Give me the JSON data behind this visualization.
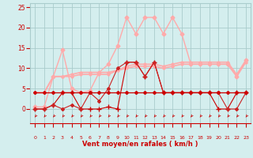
{
  "x": [
    0,
    1,
    2,
    3,
    4,
    5,
    6,
    7,
    8,
    9,
    10,
    11,
    12,
    13,
    14,
    15,
    16,
    17,
    18,
    19,
    20,
    21,
    22,
    23
  ],
  "series": [
    {
      "y": [
        4.0,
        4.0,
        4.0,
        4.0,
        4.0,
        4.0,
        4.0,
        4.0,
        4.0,
        4.0,
        4.0,
        4.0,
        4.0,
        4.0,
        4.0,
        4.0,
        4.0,
        4.0,
        4.0,
        4.0,
        4.0,
        4.0,
        4.0,
        4.0
      ],
      "color": "#cc0000",
      "marker": "D",
      "markersize": 2.0,
      "linewidth": 0.9,
      "zorder": 4,
      "linestyle": "-"
    },
    {
      "y": [
        0.0,
        0.0,
        1.0,
        4.0,
        4.0,
        0.0,
        0.0,
        0.0,
        0.5,
        0.0,
        11.5,
        11.5,
        8.0,
        11.5,
        4.0,
        4.0,
        4.0,
        4.0,
        4.0,
        4.0,
        0.0,
        0.0,
        4.0,
        4.0
      ],
      "color": "#cc0000",
      "marker": "+",
      "markersize": 4,
      "linewidth": 0.8,
      "zorder": 3,
      "linestyle": "-"
    },
    {
      "y": [
        0.0,
        0.0,
        1.0,
        0.0,
        1.0,
        0.0,
        4.0,
        2.0,
        5.0,
        10.0,
        11.5,
        11.5,
        8.0,
        11.5,
        4.0,
        4.0,
        4.0,
        4.0,
        4.0,
        4.0,
        4.0,
        0.0,
        0.0,
        4.0
      ],
      "color": "#cc2222",
      "marker": "D",
      "markersize": 2.0,
      "linewidth": 0.8,
      "zorder": 3,
      "linestyle": "-"
    },
    {
      "y": [
        4.0,
        4.0,
        8.0,
        8.0,
        8.0,
        8.5,
        8.5,
        8.5,
        8.5,
        9.5,
        10.0,
        10.5,
        10.5,
        10.5,
        10.0,
        10.5,
        11.0,
        11.0,
        11.0,
        11.0,
        11.0,
        11.0,
        8.0,
        11.5
      ],
      "color": "#ffaaaa",
      "marker": "D",
      "markersize": 1.8,
      "linewidth": 1.2,
      "zorder": 2,
      "linestyle": "-"
    },
    {
      "y": [
        4.0,
        4.0,
        8.0,
        8.0,
        8.5,
        9.0,
        9.0,
        9.0,
        9.0,
        9.5,
        10.5,
        11.0,
        11.0,
        11.0,
        10.5,
        11.0,
        11.5,
        11.5,
        11.5,
        11.5,
        11.5,
        11.5,
        8.5,
        12.0
      ],
      "color": "#ffaaaa",
      "marker": "D",
      "markersize": 1.8,
      "linewidth": 1.2,
      "zorder": 2,
      "linestyle": "-"
    },
    {
      "y": [
        0.5,
        0.5,
        8.0,
        14.5,
        5.0,
        4.0,
        4.5,
        9.0,
        11.0,
        15.5,
        22.5,
        18.5,
        22.5,
        22.5,
        18.5,
        22.5,
        18.5,
        11.0,
        11.0,
        11.0,
        11.0,
        11.0,
        8.0,
        12.0
      ],
      "color": "#ffaaaa",
      "marker": "D",
      "markersize": 2.5,
      "linewidth": 1.0,
      "zorder": 2,
      "linestyle": "-"
    }
  ],
  "xlim": [
    -0.5,
    23.5
  ],
  "ylim": [
    -3.5,
    26
  ],
  "yticks": [
    0,
    5,
    10,
    15,
    20,
    25
  ],
  "xticks": [
    0,
    1,
    2,
    3,
    4,
    5,
    6,
    7,
    8,
    9,
    10,
    11,
    12,
    13,
    14,
    15,
    16,
    17,
    18,
    19,
    20,
    21,
    22,
    23
  ],
  "xlabel": "Vent moyen/en rafales ( km/h )",
  "background_color": "#d4eeee",
  "grid_color": "#aacccc",
  "tick_color": "#cc0000",
  "xlabel_color": "#cc0000",
  "arrow_color": "#cc0000"
}
